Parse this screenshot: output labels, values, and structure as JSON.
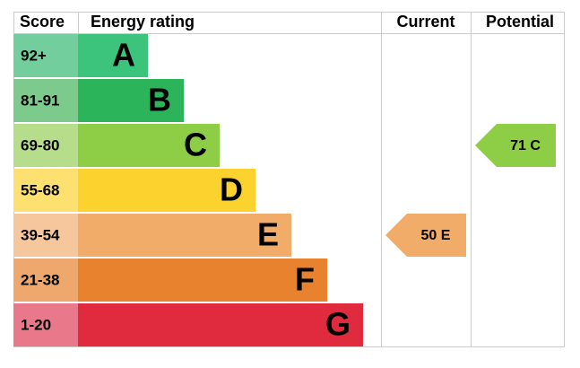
{
  "header": {
    "score": "Score",
    "rating": "Energy rating",
    "current": "Current",
    "potential": "Potential"
  },
  "bands": [
    {
      "score": "92+",
      "letter": "A",
      "color": "#3cc47c",
      "score_color": "#72cf9d"
    },
    {
      "score": "81-91",
      "letter": "B",
      "color": "#2cb45a",
      "score_color": "#7ccb8c"
    },
    {
      "score": "69-80",
      "letter": "C",
      "color": "#8dce46",
      "score_color": "#b6de8a"
    },
    {
      "score": "55-68",
      "letter": "D",
      "color": "#fcd22f",
      "score_color": "#fde06f"
    },
    {
      "score": "39-54",
      "letter": "E",
      "color": "#f2ac6a",
      "score_color": "#f6c79c"
    },
    {
      "score": "21-38",
      "letter": "F",
      "color": "#e8822e",
      "score_color": "#eea76c"
    },
    {
      "score": "1-20",
      "letter": "G",
      "color": "#e02a3d",
      "score_color": "#e9798a"
    }
  ],
  "current": {
    "value": 50,
    "letter": "E",
    "color": "#f2ac6a"
  },
  "potential": {
    "value": 71,
    "letter": "C",
    "color": "#8dce46"
  }
}
